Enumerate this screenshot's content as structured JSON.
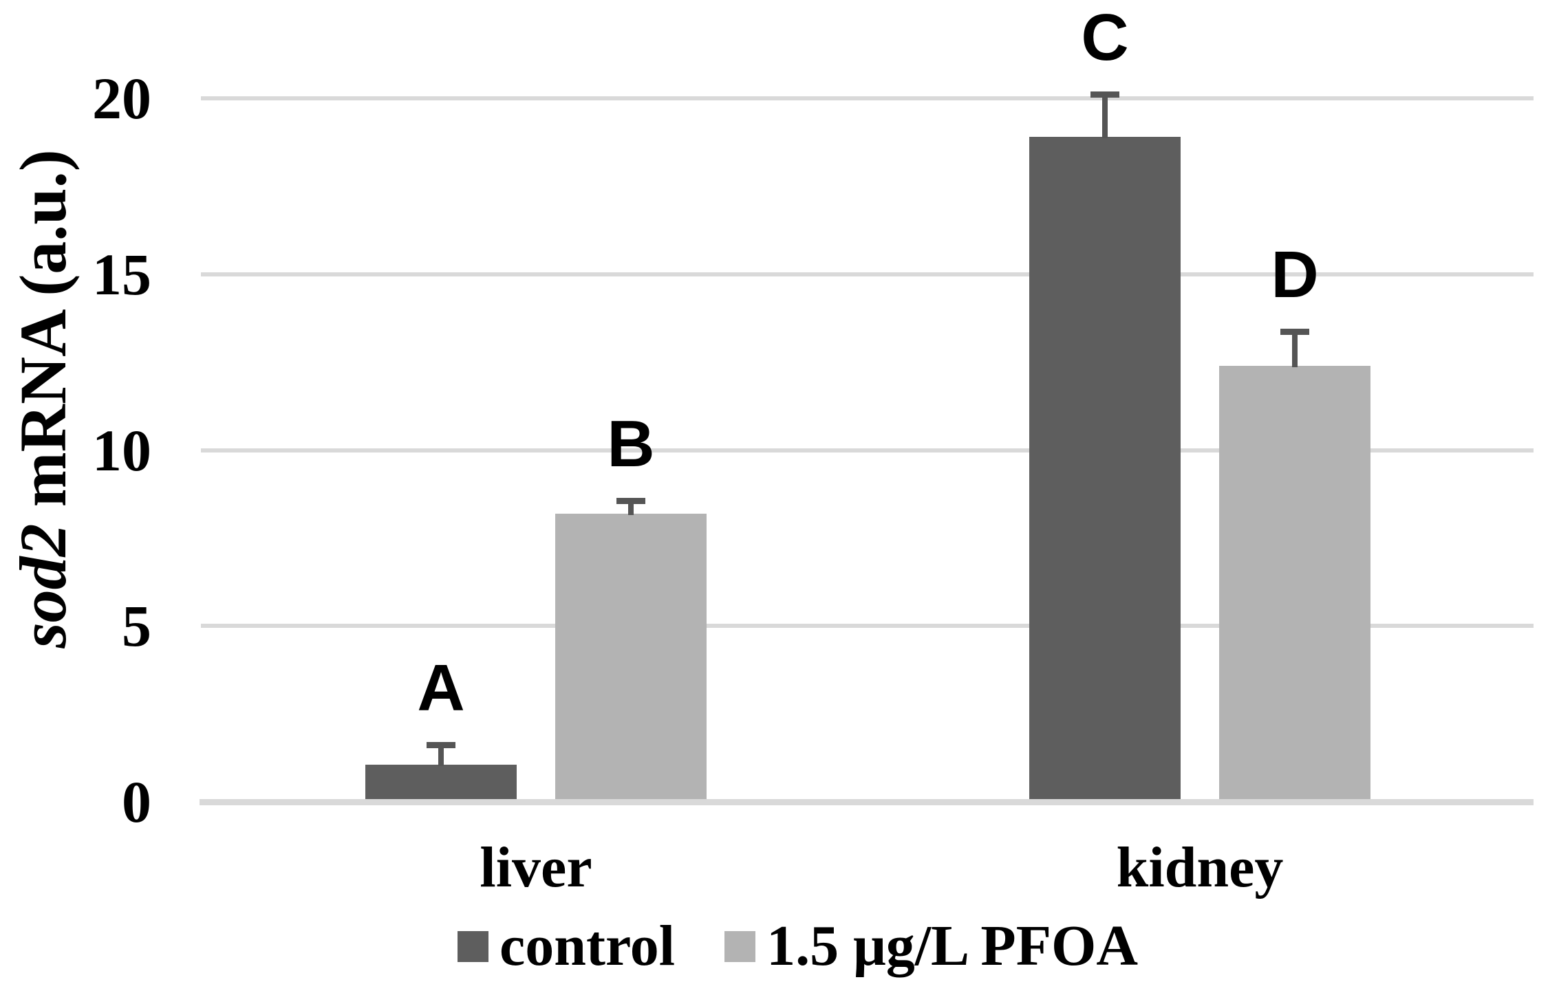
{
  "chart_data": {
    "type": "bar",
    "title": "",
    "ylabel_italic": "sod2",
    "ylabel_rest": " mRNA (a.u.)",
    "xlabel": "",
    "categories": [
      "liver",
      "kidney"
    ],
    "series": [
      {
        "name": "control",
        "color": "#5e5e5e",
        "values": [
          1.05,
          18.9
        ],
        "errors": [
          0.65,
          1.3
        ],
        "bar_labels": [
          "A",
          "C"
        ]
      },
      {
        "name": "1.5 μg/L PFOA",
        "color": "#b3b3b3",
        "values": [
          8.2,
          12.4
        ],
        "errors": [
          0.45,
          1.05
        ],
        "bar_labels": [
          "B",
          "D"
        ]
      }
    ],
    "y_ticks": [
      0,
      5,
      10,
      15,
      20
    ],
    "ylim": [
      0,
      20
    ],
    "grid": true,
    "gridline_color": "#d9d9d9",
    "axis_line_color": "#d9d9d9",
    "error_bar_color": "#555555",
    "legend_position": "bottom"
  }
}
